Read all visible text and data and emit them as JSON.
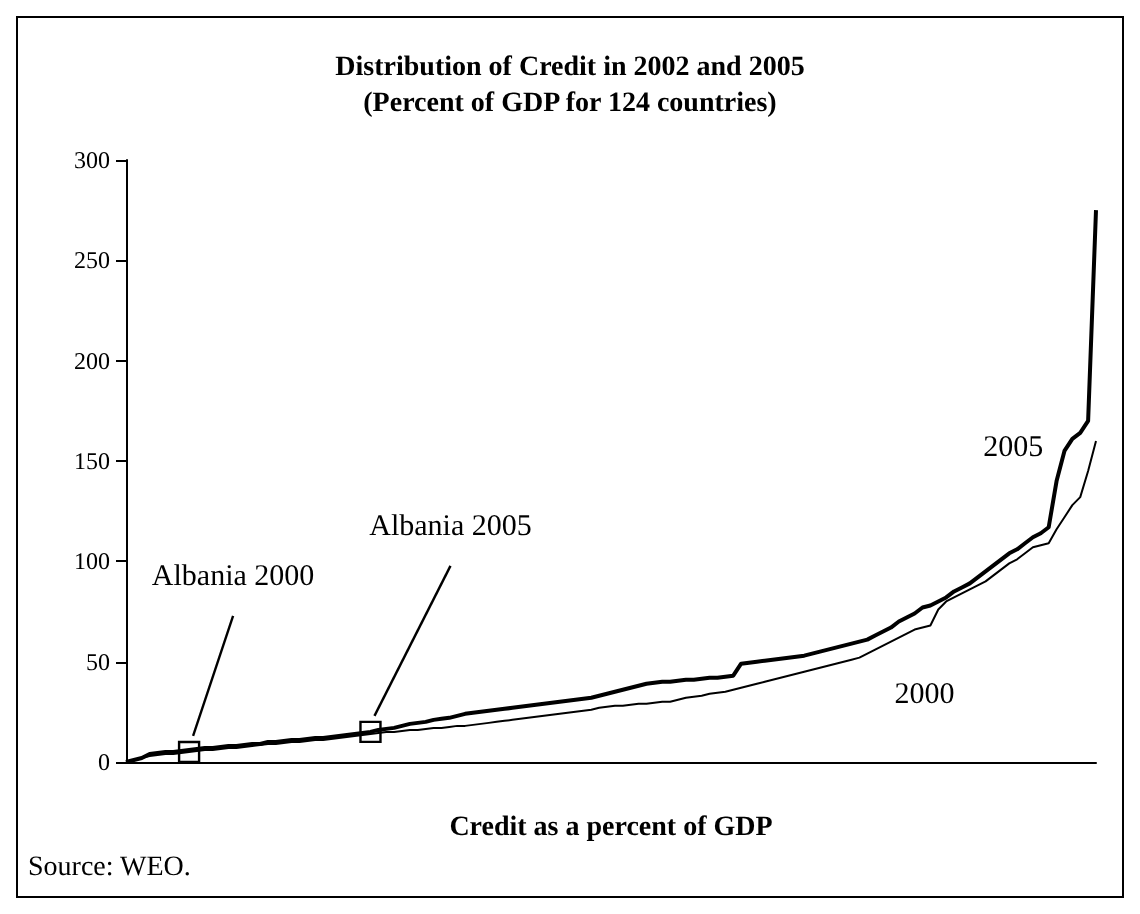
{
  "chart_data": {
    "type": "line",
    "title": "Distribution of Credit in 2002 and 2005\n(Percent of GDP for 124 countries)",
    "xlabel": "Credit as a percent of GDP",
    "categories": [
      null,
      null,
      null,
      null,
      null,
      null,
      null,
      null,
      null,
      null,
      null,
      null,
      null,
      null,
      null,
      null,
      null,
      null,
      null,
      null,
      null,
      null,
      null,
      null,
      null,
      null,
      null,
      null,
      null,
      null,
      null,
      null,
      null,
      null,
      null,
      null,
      null,
      null,
      null,
      null,
      null,
      null,
      null,
      null,
      null,
      null,
      null,
      null,
      null,
      null,
      null,
      null,
      null,
      null,
      null,
      null,
      null,
      null,
      null,
      null,
      null,
      null,
      null,
      null,
      null,
      null,
      null,
      null,
      null,
      null,
      null,
      null,
      null,
      null,
      null,
      null,
      null,
      null,
      null,
      null,
      null,
      null,
      null,
      null,
      null,
      null,
      null,
      null,
      null,
      null,
      null,
      null,
      null,
      null,
      null,
      null,
      null,
      null,
      null,
      null,
      null,
      null,
      null,
      null,
      null,
      null,
      null,
      null,
      null,
      null,
      null,
      null,
      null,
      null,
      null,
      null,
      null,
      null,
      null,
      null,
      null,
      null,
      null,
      null
    ],
    "series": [
      {
        "name": "2005",
        "color": "#000000",
        "values": [
          0,
          1,
          2,
          4,
          4.5,
          5,
          5,
          5.5,
          6,
          6.5,
          7,
          7,
          7.5,
          8,
          8,
          8.5,
          9,
          9,
          10,
          10,
          10.5,
          11,
          11,
          11.5,
          12,
          12,
          12.5,
          13,
          13.5,
          14,
          14.5,
          15,
          16,
          16.5,
          17,
          18,
          19,
          19.5,
          20,
          21,
          21.5,
          22,
          23,
          24,
          24.5,
          25,
          25.5,
          26,
          26.5,
          27,
          27.5,
          28,
          28.5,
          29,
          29.5,
          30,
          30.5,
          31,
          31.5,
          32,
          33,
          34,
          35,
          36,
          37,
          38,
          39,
          39.5,
          40,
          40,
          40.5,
          41,
          41,
          41.5,
          42,
          42,
          42.5,
          43,
          49,
          49.5,
          50,
          50.5,
          51,
          51.5,
          52,
          52.5,
          53,
          54,
          55,
          56,
          57,
          58,
          59,
          60,
          61,
          63,
          65,
          67,
          70,
          72,
          74,
          77,
          78,
          80,
          82,
          85,
          87,
          89,
          92,
          95,
          98,
          101,
          104,
          106,
          109,
          112,
          114,
          117,
          140,
          155,
          161,
          164,
          170,
          275
        ]
      },
      {
        "name": "2000",
        "color": "#000000",
        "values": [
          0,
          1,
          2,
          3,
          3.5,
          4,
          4,
          4.5,
          5,
          5.5,
          6,
          6,
          6.5,
          7,
          7,
          7.5,
          8,
          8.5,
          9,
          9,
          9.5,
          10,
          10,
          10.5,
          11,
          11,
          11.5,
          12,
          12.5,
          13,
          13.5,
          14,
          14.5,
          15,
          15,
          15.5,
          16,
          16,
          16.5,
          17,
          17,
          17.5,
          18,
          18,
          18.5,
          19,
          19.5,
          20,
          20.5,
          21,
          21.5,
          22,
          22.5,
          23,
          23.5,
          24,
          24.5,
          25,
          25.5,
          26,
          27,
          27.5,
          28,
          28,
          28.5,
          29,
          29,
          29.5,
          30,
          30,
          31,
          32,
          32.5,
          33,
          34,
          34.5,
          35,
          36,
          37,
          38,
          39,
          40,
          41,
          42,
          43,
          44,
          45,
          46,
          47,
          48,
          49,
          50,
          51,
          52,
          54,
          56,
          58,
          60,
          62,
          64,
          66,
          67,
          68,
          76,
          80,
          82,
          84,
          86,
          88,
          90,
          93,
          96,
          99,
          101,
          104,
          107,
          108,
          109,
          116,
          122,
          128,
          132,
          145,
          160
        ]
      }
    ],
    "ylim": [
      0,
      300
    ],
    "yticks": [
      0,
      50,
      100,
      150,
      200,
      250,
      300
    ],
    "tick_labels": "y",
    "grid": false,
    "legend": false,
    "annotations": [
      "Albania 2000",
      "Albania 2005",
      "Source: WEO."
    ]
  }
}
